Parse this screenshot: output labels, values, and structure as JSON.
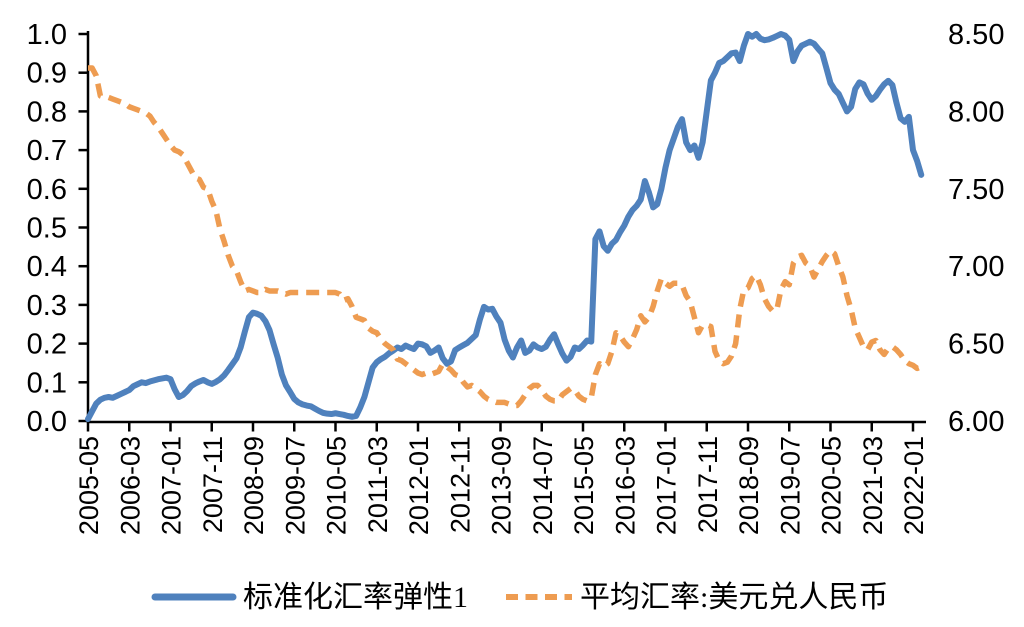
{
  "chart_data": {
    "type": "line",
    "title": "",
    "frequency": "monthly",
    "x_start": "2005-05",
    "x_end": "2022-03",
    "months_per_tick": 10,
    "x_tick_labels": [
      "2005-05",
      "2006-03",
      "2007-01",
      "2007-11",
      "2008-09",
      "2009-07",
      "2010-05",
      "2011-03",
      "2012-01",
      "2012-11",
      "2013-09",
      "2014-07",
      "2015-05",
      "2016-03",
      "2017-01",
      "2017-11",
      "2018-09",
      "2019-07",
      "2020-05",
      "2021-03",
      "2022-01"
    ],
    "left_axis": {
      "min": 0.0,
      "max": 1.0,
      "ticks": [
        "0.0",
        "0.1",
        "0.2",
        "0.3",
        "0.4",
        "0.5",
        "0.6",
        "0.7",
        "0.8",
        "0.9",
        "1.0"
      ]
    },
    "right_axis": {
      "min": 6.0,
      "max": 8.5,
      "ticks": [
        "6.00",
        "6.50",
        "7.00",
        "7.50",
        "8.00",
        "8.50"
      ]
    },
    "grid": false,
    "legend_position": "bottom",
    "series": [
      {
        "name": "标准化汇率弹性1",
        "axis": "left",
        "style": "solid",
        "color": "#4F81BD",
        "values": [
          0.005,
          0.025,
          0.045,
          0.055,
          0.06,
          0.062,
          0.06,
          0.065,
          0.07,
          0.075,
          0.08,
          0.09,
          0.095,
          0.1,
          0.098,
          0.102,
          0.105,
          0.108,
          0.11,
          0.112,
          0.108,
          0.082,
          0.062,
          0.067,
          0.077,
          0.09,
          0.097,
          0.102,
          0.106,
          0.1,
          0.096,
          0.101,
          0.108,
          0.118,
          0.132,
          0.147,
          0.162,
          0.19,
          0.23,
          0.268,
          0.28,
          0.277,
          0.272,
          0.258,
          0.235,
          0.198,
          0.163,
          0.12,
          0.092,
          0.075,
          0.057,
          0.048,
          0.043,
          0.04,
          0.038,
          0.032,
          0.026,
          0.021,
          0.019,
          0.018,
          0.02,
          0.018,
          0.016,
          0.013,
          0.011,
          0.013,
          0.035,
          0.062,
          0.1,
          0.138,
          0.152,
          0.16,
          0.166,
          0.175,
          0.182,
          0.19,
          0.186,
          0.195,
          0.19,
          0.186,
          0.2,
          0.198,
          0.193,
          0.176,
          0.182,
          0.19,
          0.162,
          0.148,
          0.154,
          0.183,
          0.19,
          0.196,
          0.202,
          0.212,
          0.222,
          0.262,
          0.295,
          0.288,
          0.29,
          0.27,
          0.254,
          0.21,
          0.182,
          0.164,
          0.19,
          0.208,
          0.176,
          0.182,
          0.198,
          0.19,
          0.186,
          0.192,
          0.21,
          0.224,
          0.198,
          0.174,
          0.156,
          0.166,
          0.19,
          0.186,
          0.196,
          0.208,
          0.205,
          0.47,
          0.49,
          0.452,
          0.44,
          0.458,
          0.468,
          0.488,
          0.505,
          0.528,
          0.545,
          0.556,
          0.572,
          0.62,
          0.59,
          0.552,
          0.56,
          0.6,
          0.655,
          0.7,
          0.73,
          0.76,
          0.78,
          0.72,
          0.7,
          0.712,
          0.68,
          0.72,
          0.8,
          0.88,
          0.9,
          0.925,
          0.93,
          0.94,
          0.95,
          0.952,
          0.93,
          0.97,
          1.0,
          0.993,
          1.0,
          0.988,
          0.984,
          0.986,
          0.99,
          0.995,
          1.0,
          0.996,
          0.985,
          0.93,
          0.955,
          0.97,
          0.975,
          0.98,
          0.975,
          0.962,
          0.95,
          0.912,
          0.873,
          0.856,
          0.845,
          0.822,
          0.8,
          0.812,
          0.858,
          0.875,
          0.87,
          0.846,
          0.83,
          0.84,
          0.856,
          0.87,
          0.879,
          0.868,
          0.822,
          0.782,
          0.773,
          0.786,
          0.7,
          0.672,
          0.636
        ]
      },
      {
        "name": "平均汇率:美元兑人民币",
        "axis": "right",
        "style": "dashed",
        "color": "#EE9C51",
        "values": [
          8.28,
          8.28,
          8.23,
          8.1,
          8.09,
          8.09,
          8.08,
          8.07,
          8.06,
          8.05,
          8.03,
          8.02,
          8.01,
          8.0,
          7.99,
          7.97,
          7.93,
          7.9,
          7.86,
          7.82,
          7.78,
          7.75,
          7.74,
          7.72,
          7.67,
          7.62,
          7.57,
          7.56,
          7.51,
          7.5,
          7.42,
          7.36,
          7.24,
          7.16,
          7.07,
          7.0,
          6.97,
          6.9,
          6.84,
          6.85,
          6.84,
          6.83,
          6.83,
          6.85,
          6.84,
          6.84,
          6.84,
          6.83,
          6.82,
          6.83,
          6.83,
          6.83,
          6.83,
          6.83,
          6.83,
          6.83,
          6.83,
          6.83,
          6.83,
          6.83,
          6.83,
          6.82,
          6.78,
          6.79,
          6.74,
          6.67,
          6.66,
          6.65,
          6.6,
          6.58,
          6.57,
          6.53,
          6.5,
          6.48,
          6.46,
          6.4,
          6.39,
          6.37,
          6.35,
          6.33,
          6.31,
          6.3,
          6.31,
          6.3,
          6.31,
          6.32,
          6.37,
          6.35,
          6.33,
          6.3,
          6.29,
          6.25,
          6.22,
          6.23,
          6.21,
          6.19,
          6.16,
          6.14,
          6.13,
          6.12,
          6.12,
          6.12,
          6.11,
          6.1,
          6.1,
          6.13,
          6.17,
          6.21,
          6.23,
          6.23,
          6.2,
          6.16,
          6.14,
          6.13,
          6.13,
          6.17,
          6.19,
          6.21,
          6.2,
          6.16,
          6.14,
          6.13,
          6.15,
          6.3,
          6.37,
          6.35,
          6.37,
          6.45,
          6.57,
          6.55,
          6.51,
          6.48,
          6.53,
          6.59,
          6.68,
          6.64,
          6.67,
          6.74,
          6.84,
          6.92,
          6.89,
          6.87,
          6.89,
          6.89,
          6.88,
          6.81,
          6.77,
          6.67,
          6.57,
          6.62,
          6.62,
          6.61,
          6.45,
          6.39,
          6.37,
          6.38,
          6.42,
          6.5,
          6.72,
          6.85,
          6.86,
          6.92,
          6.94,
          6.88,
          6.79,
          6.74,
          6.71,
          6.72,
          6.85,
          6.9,
          6.88,
          7.02,
          7.06,
          7.07,
          7.02,
          7.0,
          6.93,
          6.98,
          7.03,
          7.07,
          7.1,
          7.08,
          7.0,
          6.93,
          6.81,
          6.72,
          6.6,
          6.54,
          6.48,
          6.46,
          6.51,
          6.52,
          6.46,
          6.43,
          6.47,
          6.48,
          6.46,
          6.43,
          6.39,
          6.37,
          6.36,
          6.34,
          6.35
        ]
      }
    ]
  },
  "legend": {
    "series1_label": "标准化汇率弹性1",
    "series2_label": "平均汇率:美元兑人民币"
  },
  "colors": {
    "series1": "#4F81BD",
    "series2": "#EE9C51",
    "axis": "#000000",
    "background": "#ffffff"
  }
}
